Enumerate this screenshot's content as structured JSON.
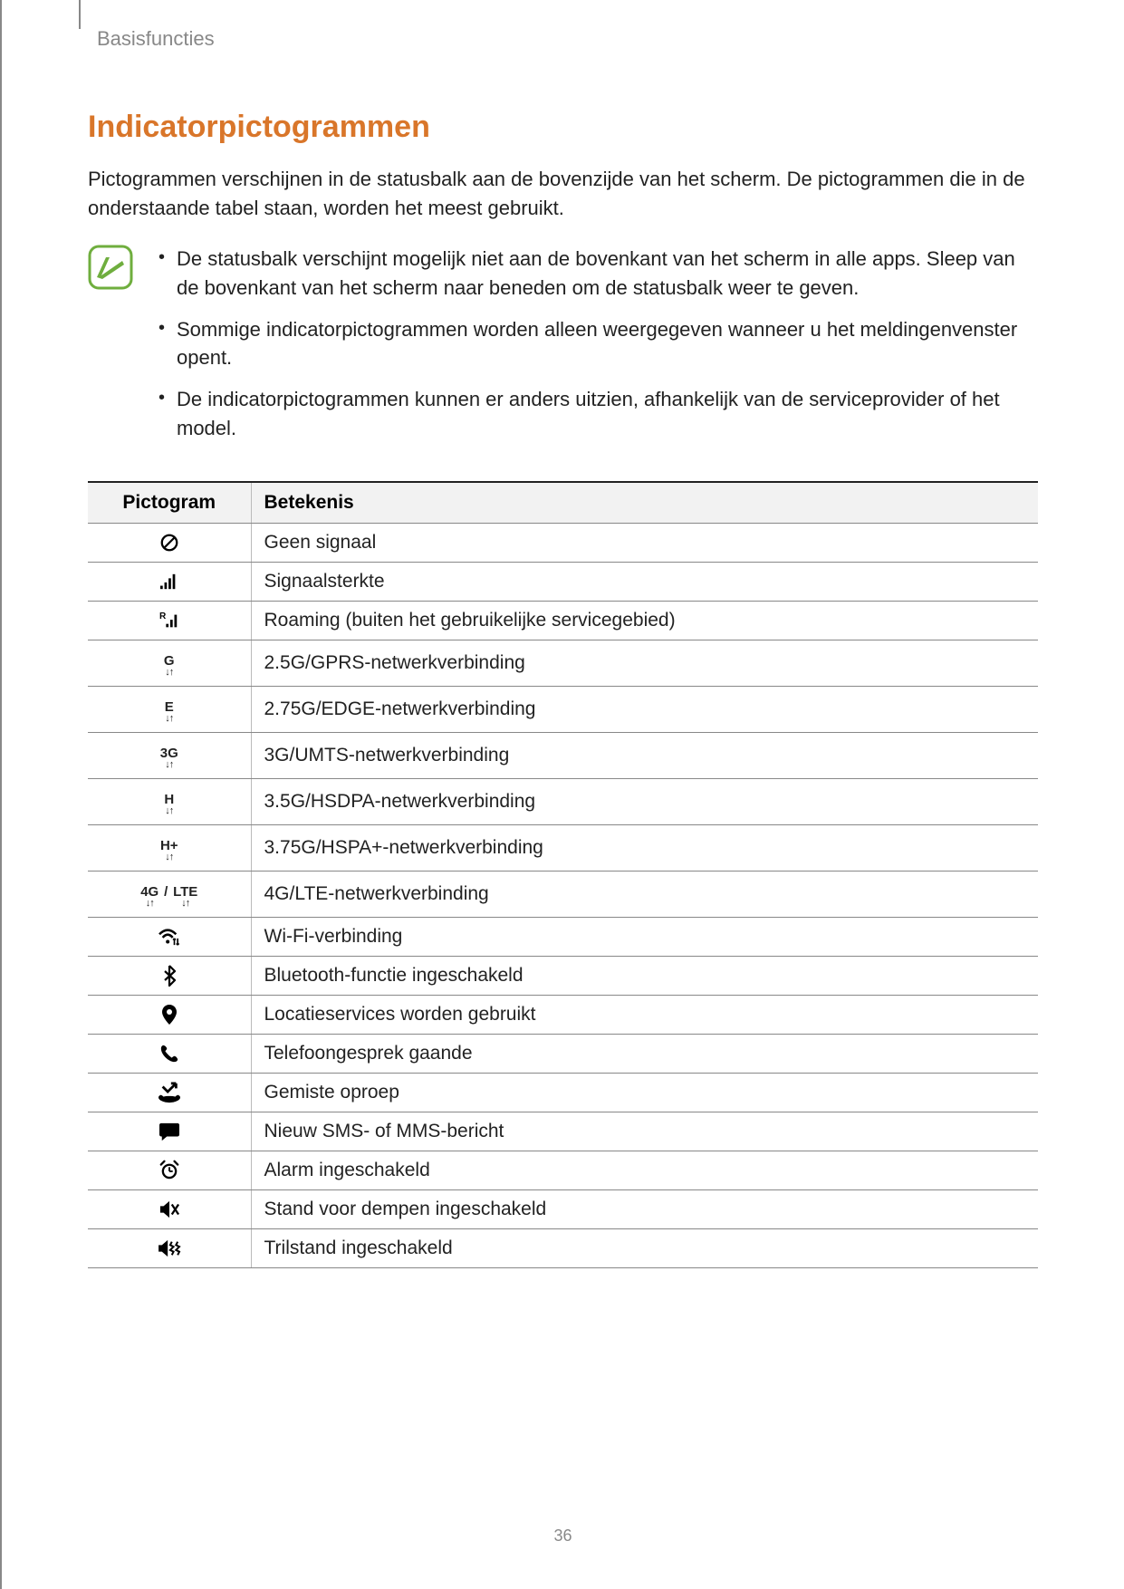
{
  "breadcrumb": "Basisfuncties",
  "section_title": "Indicatorpictogrammen",
  "intro": "Pictogrammen verschijnen in de statusbalk aan de bovenzijde van het scherm. De pictogrammen die in de onderstaande tabel staan, worden het meest gebruikt.",
  "notes": [
    "De statusbalk verschijnt mogelijk niet aan de bovenkant van het scherm in alle apps. Sleep van de bovenkant van het scherm naar beneden om de statusbalk weer te geven.",
    "Sommige indicatorpictogrammen worden alleen weergegeven wanneer u het meldingenvenster opent.",
    "De indicatorpictogrammen kunnen er anders uitzien, afhankelijk van de serviceprovider of het model."
  ],
  "table": {
    "header_icon": "Pictogram",
    "header_meaning": "Betekenis",
    "rows": [
      {
        "icon": "no-signal",
        "meaning": "Geen signaal"
      },
      {
        "icon": "signal",
        "meaning": "Signaalsterkte"
      },
      {
        "icon": "roaming",
        "meaning": "Roaming (buiten het gebruikelijke servicegebied)"
      },
      {
        "icon": "gprs",
        "meaning": "2.5G/GPRS-netwerkverbinding"
      },
      {
        "icon": "edge",
        "meaning": "2.75G/EDGE-netwerkverbinding"
      },
      {
        "icon": "3g",
        "meaning": "3G/UMTS-netwerkverbinding"
      },
      {
        "icon": "hsdpa",
        "meaning": "3.5G/HSDPA-netwerkverbinding"
      },
      {
        "icon": "hspa-plus",
        "meaning": "3.75G/HSPA+-netwerkverbinding"
      },
      {
        "icon": "4g-lte",
        "meaning": "4G/LTE-netwerkverbinding"
      },
      {
        "icon": "wifi",
        "meaning": "Wi-Fi-verbinding"
      },
      {
        "icon": "bluetooth",
        "meaning": "Bluetooth-functie ingeschakeld"
      },
      {
        "icon": "location",
        "meaning": "Locatieservices worden gebruikt"
      },
      {
        "icon": "call",
        "meaning": "Telefoongesprek gaande"
      },
      {
        "icon": "missed-call",
        "meaning": "Gemiste oproep"
      },
      {
        "icon": "sms",
        "meaning": "Nieuw SMS- of MMS-bericht"
      },
      {
        "icon": "alarm",
        "meaning": "Alarm ingeschakeld"
      },
      {
        "icon": "mute",
        "meaning": "Stand voor dempen ingeschakeld"
      },
      {
        "icon": "vibrate",
        "meaning": "Trilstand ingeschakeld"
      }
    ]
  },
  "icon_labels": {
    "gprs": "G",
    "edge": "E",
    "3g": "3G",
    "hsdpa": "H",
    "hspa-plus": "H+",
    "4g": "4G",
    "lte": "LTE",
    "roaming": "R"
  },
  "colors": {
    "accent": "#d9762a",
    "note_green": "#6fae3e",
    "text": "#222222",
    "muted": "#888888",
    "header_bg": "#f2f2f2",
    "border_dark": "#222222",
    "border_light": "#888888"
  },
  "page_number": "36"
}
